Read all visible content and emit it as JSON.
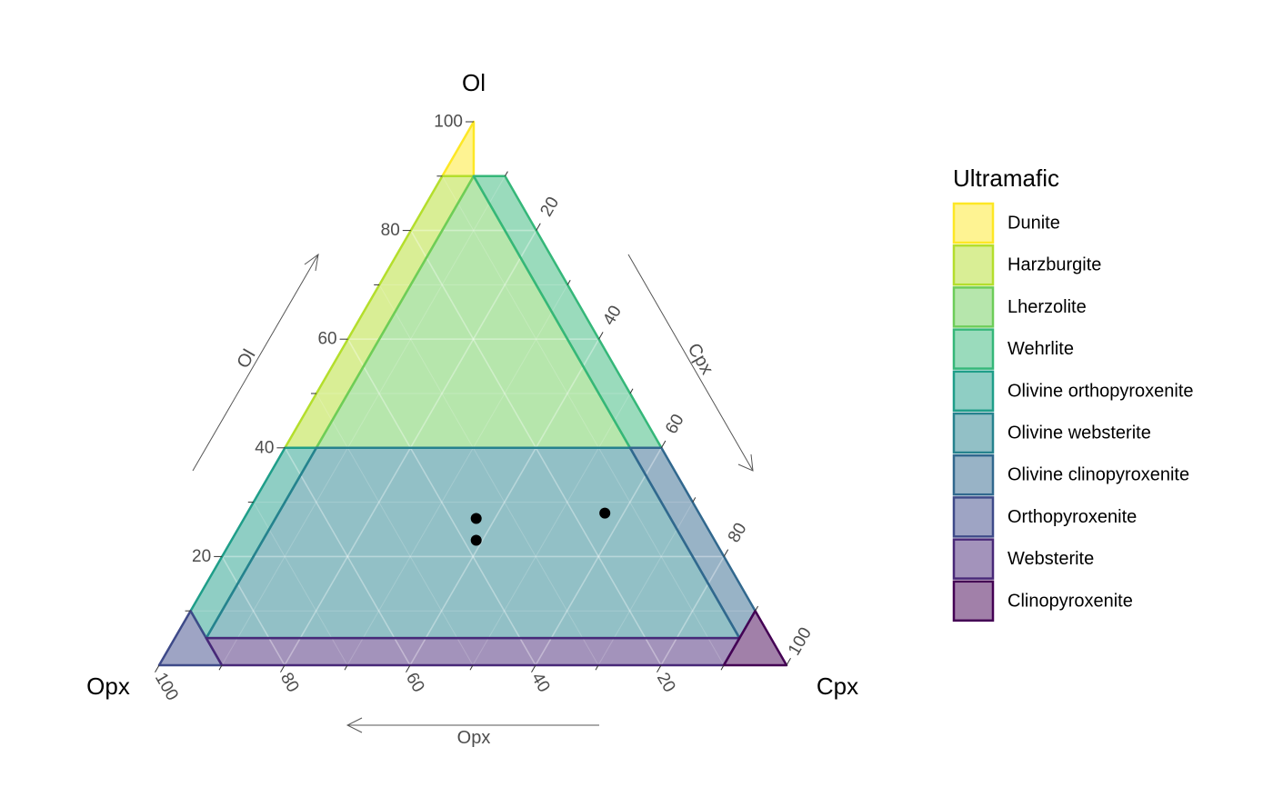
{
  "chart_data": {
    "type": "scatter",
    "subtype": "ternary",
    "vertices": {
      "top": "Ol",
      "left": "Opx",
      "right": "Cpx"
    },
    "axis_titles": {
      "ol": "Ol",
      "cpx": "Cpx",
      "opx": "Opx"
    },
    "ticks": [
      "20",
      "40",
      "60",
      "80",
      "100"
    ],
    "ticks_minor_step": 10,
    "grid": true,
    "legend_title": "Ultramafic",
    "legend_position": "right",
    "fields": [
      {
        "name": "Dunite",
        "color": "#FDE725",
        "polygon": [
          [
            100,
            0,
            0
          ],
          [
            90,
            5,
            5
          ],
          [
            90,
            0,
            10
          ]
        ]
      },
      {
        "name": "Harzburgite",
        "color": "#B4DE2C",
        "polygon": [
          [
            90,
            0,
            10
          ],
          [
            40,
            0,
            60
          ],
          [
            40,
            5,
            55
          ],
          [
            90,
            5,
            5
          ]
        ]
      },
      {
        "name": "Lherzolite",
        "color": "#6DCD59",
        "polygon": [
          [
            90,
            5,
            5
          ],
          [
            40,
            5,
            55
          ],
          [
            40,
            55,
            5
          ]
        ]
      },
      {
        "name": "Wehrlite",
        "color": "#35B779",
        "polygon": [
          [
            90,
            5,
            5
          ],
          [
            40,
            55,
            5
          ],
          [
            40,
            60,
            0
          ],
          [
            90,
            10,
            0
          ]
        ]
      },
      {
        "name": "Olivine orthopyroxenite",
        "color": "#1F9E89",
        "polygon": [
          [
            40,
            0,
            60
          ],
          [
            10,
            0,
            90
          ],
          [
            5,
            5,
            90
          ],
          [
            40,
            5,
            55
          ]
        ]
      },
      {
        "name": "Olivine websterite",
        "color": "#26828E",
        "polygon": [
          [
            40,
            5,
            55
          ],
          [
            5,
            5,
            90
          ],
          [
            5,
            90,
            5
          ],
          [
            40,
            55,
            5
          ]
        ]
      },
      {
        "name": "Olivine clinopyroxenite",
        "color": "#31688E",
        "polygon": [
          [
            40,
            55,
            5
          ],
          [
            5,
            90,
            5
          ],
          [
            10,
            90,
            0
          ],
          [
            40,
            60,
            0
          ]
        ]
      },
      {
        "name": "Orthopyroxenite",
        "color": "#3E4A89",
        "polygon": [
          [
            10,
            0,
            90
          ],
          [
            0,
            0,
            100
          ],
          [
            0,
            10,
            90
          ],
          [
            5,
            5,
            90
          ]
        ]
      },
      {
        "name": "Websterite",
        "color": "#482878",
        "polygon": [
          [
            5,
            5,
            90
          ],
          [
            0,
            10,
            90
          ],
          [
            0,
            90,
            10
          ],
          [
            5,
            90,
            5
          ]
        ]
      },
      {
        "name": "Clinopyroxenite",
        "color": "#440154",
        "polygon": [
          [
            10,
            90,
            0
          ],
          [
            0,
            100,
            0
          ],
          [
            0,
            90,
            10
          ],
          [
            5,
            90,
            5
          ]
        ]
      }
    ],
    "points": [
      {
        "ol": 27,
        "cpx": 37,
        "opx": 36
      },
      {
        "ol": 23,
        "cpx": 39,
        "opx": 38
      },
      {
        "ol": 28,
        "cpx": 57,
        "opx": 15
      }
    ]
  }
}
